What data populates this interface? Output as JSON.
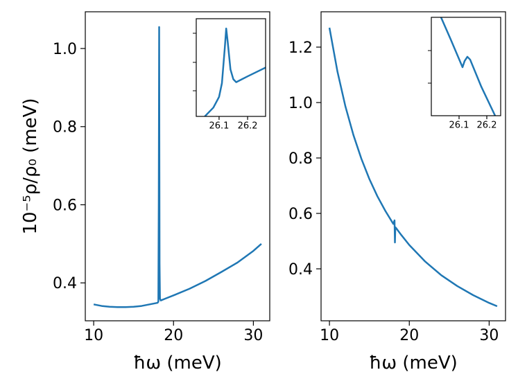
{
  "chart_data": [
    {
      "type": "line",
      "xlabel": "ħω (meV)",
      "ylabel": "10⁻⁵ρ/ρ₀ (meV)",
      "x": [
        10,
        11,
        12,
        13,
        14,
        15,
        16,
        17,
        18,
        18.1,
        18.15,
        18.2,
        18.25,
        18.3,
        18.4,
        19,
        20,
        22,
        24,
        26,
        28,
        30,
        31
      ],
      "series": [
        {
          "color": "#1f77b4",
          "values": [
            0.345,
            0.341,
            0.339,
            0.338,
            0.338,
            0.339,
            0.341,
            0.345,
            0.349,
            0.352,
            0.6,
            1.055,
            0.45,
            0.36,
            0.355,
            0.36,
            0.368,
            0.385,
            0.405,
            0.428,
            0.452,
            0.482,
            0.5
          ]
        }
      ],
      "xlim": [
        8.95,
        32.05
      ],
      "xticks": [
        10,
        20,
        30
      ],
      "ylim": [
        0.303,
        1.094
      ],
      "yticks": [
        0.4,
        0.6,
        0.8,
        {
          "value": 1,
          "label": "1.0"
        }
      ]
    },
    {
      "type": "line",
      "xlabel": "ħω (meV)",
      "x": [
        10,
        11,
        12,
        13,
        14,
        15,
        16,
        17,
        18,
        18.15,
        18.2,
        18.25,
        18.4,
        19,
        20,
        22,
        24,
        26,
        28,
        30,
        31
      ],
      "series": [
        {
          "color": "#1f77b4",
          "values": [
            1.27,
            1.112,
            0.986,
            0.883,
            0.797,
            0.724,
            0.662,
            0.609,
            0.562,
            0.575,
            0.495,
            0.55,
            0.545,
            0.522,
            0.486,
            0.426,
            0.377,
            0.338,
            0.305,
            0.277,
            0.265
          ]
        }
      ],
      "xlim": [
        8.95,
        32.05
      ],
      "xticks": [
        10,
        20,
        30
      ],
      "ylim": [
        0.2125,
        1.3275
      ],
      "yticks": [
        0.4,
        0.6,
        0.8,
        {
          "value": 1,
          "label": "1.0"
        },
        1.2
      ]
    },
    {
      "type": "line",
      "x": [
        26.05,
        26.08,
        26.1,
        26.11,
        26.12,
        26.125,
        26.13,
        26.14,
        26.15,
        26.16,
        26.18,
        26.2,
        26.263
      ],
      "series": [
        {
          "color": "#1f77b4",
          "values": [
            0.436,
            0.4369,
            0.438,
            0.4394,
            0.443,
            0.445,
            0.4437,
            0.4408,
            0.4398,
            0.4395,
            0.4398,
            0.4401,
            0.441
          ]
        }
      ],
      "xlim": [
        26.02,
        26.263
      ],
      "xticks": [
        26.1,
        26.2
      ],
      "ylim": [
        0.436,
        0.446
      ]
    },
    {
      "type": "line",
      "x": [
        26.035,
        26.07,
        26.1125,
        26.12,
        26.13,
        26.14,
        26.18,
        26.23
      ],
      "series": [
        {
          "color": "#1f77b4",
          "values": [
            0.39,
            0.38775,
            0.38493,
            0.38556,
            0.38599,
            0.3857,
            0.38296,
            0.38
          ]
        }
      ],
      "xlim": [
        26.0,
        26.25
      ],
      "xticks": [
        26.1,
        26.2
      ],
      "ylim": [
        0.38,
        0.39
      ]
    }
  ]
}
